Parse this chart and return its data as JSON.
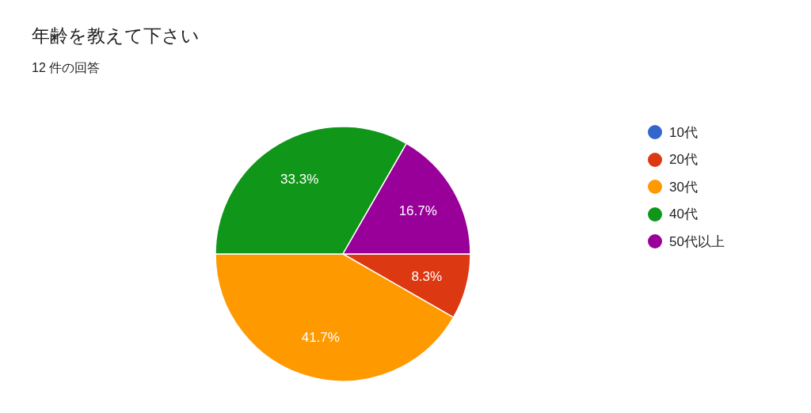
{
  "chart_data": {
    "type": "pie",
    "title": "年齢を教えて下さい",
    "subtitle": "12 件の回答",
    "categories": [
      "10代",
      "20代",
      "30代",
      "40代",
      "50代以上"
    ],
    "values": [
      0,
      8.3,
      41.7,
      33.3,
      16.7
    ],
    "colors": [
      "#3366cc",
      "#dc3912",
      "#ff9900",
      "#109618",
      "#990099"
    ],
    "value_labels": [
      null,
      "8.3%",
      "41.7%",
      "33.3%",
      "16.7%"
    ],
    "legend": "right"
  }
}
